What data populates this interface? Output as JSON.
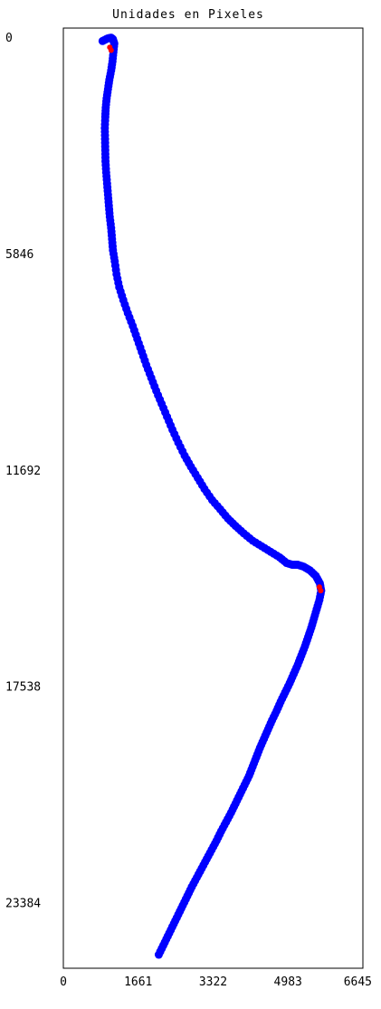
{
  "chart_data": {
    "type": "scatter",
    "title": "Unidades en Pixeles",
    "xlabel": "",
    "ylabel": "",
    "xlim": [
      0,
      6645
    ],
    "ylim": [
      0,
      25400
    ],
    "y_inverted": true,
    "grid": false,
    "legend": "none",
    "x_ticks": [
      0,
      1661,
      3322,
      4983,
      6645
    ],
    "x_tick_labels": [
      "0",
      "1661",
      "3322",
      "4983",
      "6645"
    ],
    "y_ticks": [
      0,
      5846,
      11692,
      17538,
      23384
    ],
    "y_tick_labels": [
      "0",
      "5846",
      "11692",
      "17538",
      "23384"
    ],
    "colors": {
      "points": "#0000ff",
      "highlight": "#ff0000",
      "frame": "#000000"
    },
    "series": [
      {
        "color": "#0000ff",
        "x": [
          870,
          980,
          1060,
          1100,
          1130,
          1110,
          1090,
          1060,
          1020,
          990,
          960,
          940,
          930,
          920,
          925,
          930,
          935,
          950,
          970,
          990,
          1010,
          1030,
          1060,
          1080,
          1100,
          1140,
          1180,
          1240,
          1330,
          1430,
          1540,
          1640,
          1740,
          1840,
          1950,
          2060,
          2180,
          2300,
          2420,
          2550,
          2690,
          2830,
          2980,
          3130,
          3300,
          3480,
          3650,
          3820,
          4000,
          4200,
          4400,
          4600,
          4800,
          4950,
          5080,
          5200,
          5330,
          5470,
          5600,
          5690,
          5720,
          5680,
          5620,
          5560,
          5500,
          5430,
          5360,
          5280,
          5200,
          5110,
          5020,
          4920,
          4820,
          4730,
          4630,
          4540,
          4450,
          4360,
          4280,
          4200,
          4120,
          4020,
          3920,
          3820,
          3720,
          3610,
          3500,
          3400,
          3290,
          3180,
          3070,
          2960,
          2850,
          2750,
          2650,
          2550,
          2450,
          2350,
          2250,
          2150,
          2050,
          1960,
          1880,
          1810,
          1750,
          1700,
          1660,
          1630,
          1610,
          1600
        ],
        "y": [
          350,
          280,
          260,
          300,
          420,
          650,
          900,
          1150,
          1400,
          1650,
          1900,
          2150,
          2400,
          2700,
          3000,
          3300,
          3600,
          3900,
          4200,
          4500,
          4800,
          5100,
          5400,
          5700,
          6000,
          6300,
          6650,
          7000,
          7350,
          7700,
          8050,
          8400,
          8750,
          9100,
          9450,
          9800,
          10150,
          10500,
          10850,
          11200,
          11550,
          11850,
          12150,
          12450,
          12750,
          13000,
          13250,
          13450,
          13650,
          13850,
          14000,
          14150,
          14300,
          14450,
          14500,
          14500,
          14550,
          14650,
          14800,
          15000,
          15200,
          15450,
          15700,
          15950,
          16200,
          16450,
          16700,
          16950,
          17200,
          17450,
          17700,
          17950,
          18200,
          18450,
          18700,
          18950,
          19200,
          19450,
          19700,
          19950,
          20200,
          20450,
          20700,
          20950,
          21200,
          21450,
          21700,
          21950,
          22200,
          22450,
          22700,
          22950,
          23200,
          23450,
          23700,
          23950,
          24200,
          24450,
          24700,
          24950,
          25200,
          25400,
          25550,
          25700,
          25850,
          26000,
          26150,
          26300,
          26450,
          26600
        ]
      },
      {
        "color": "#ff0000",
        "x": [
          1030,
          1060,
          5680,
          5710
        ],
        "y": [
          520,
          600,
          15100,
          15200
        ]
      }
    ]
  }
}
